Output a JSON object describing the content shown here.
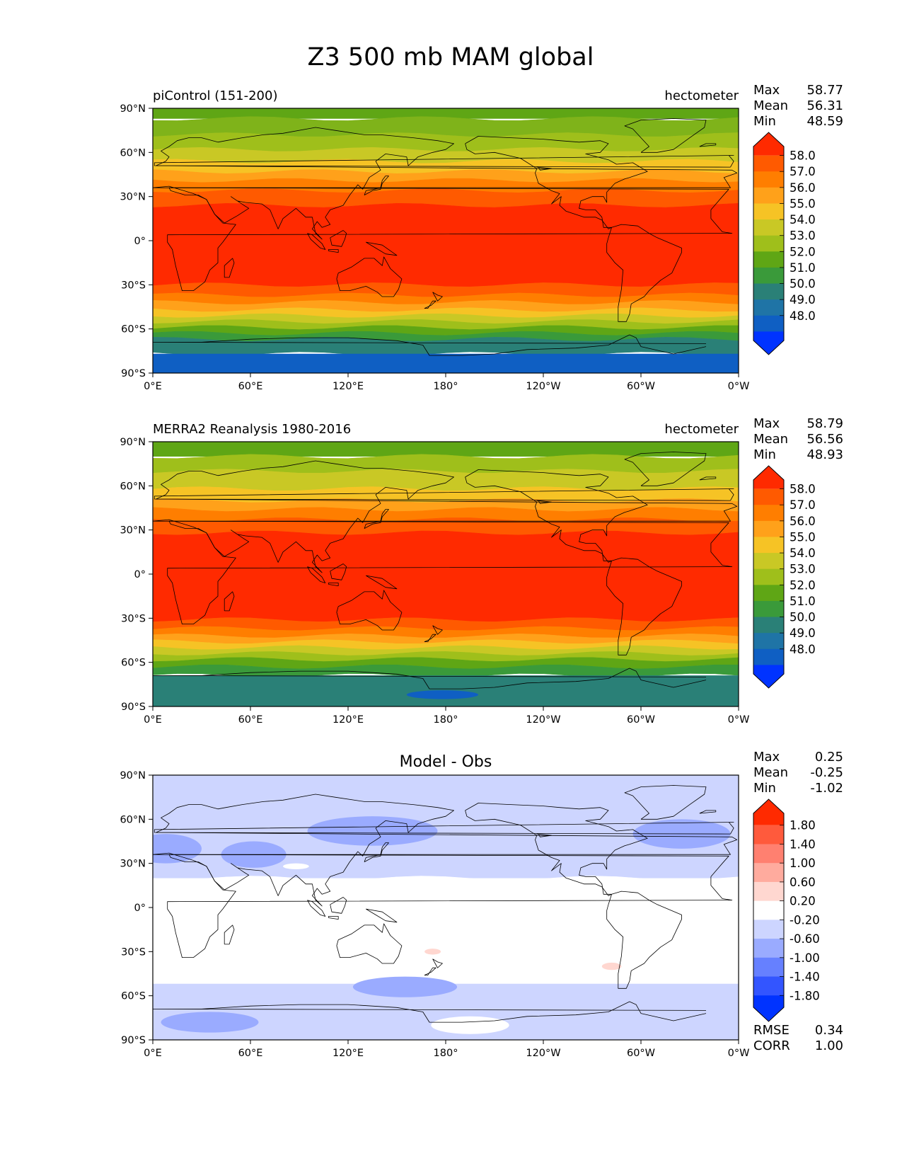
{
  "title": "Z3 500 mb MAM global",
  "axes": {
    "lat_ticks": [
      "90°N",
      "60°N",
      "30°N",
      "0°",
      "30°S",
      "60°S",
      "90°S"
    ],
    "lon_ticks": [
      "0°E",
      "60°E",
      "120°E",
      "180°",
      "120°W",
      "60°W",
      "0°W"
    ]
  },
  "panels": [
    {
      "id": "model",
      "left_title": "piControl (151-200)",
      "center_title": "",
      "units": "hectometer",
      "stats": [
        {
          "label": "Max",
          "value": "58.77"
        },
        {
          "label": "Mean",
          "value": "56.31"
        },
        {
          "label": "Min",
          "value": "48.59"
        }
      ],
      "bottom_stats": [],
      "colorbar": {
        "labels": [
          "58.0",
          "57.0",
          "56.0",
          "55.0",
          "54.0",
          "53.0",
          "52.0",
          "51.0",
          "50.0",
          "49.0",
          "48.0"
        ],
        "colors": [
          "#ff2a00",
          "#ff5a00",
          "#ff7e00",
          "#ffa11a",
          "#f6c325",
          "#c9c825",
          "#9fbf1b",
          "#5fa615",
          "#3a9a3a",
          "#2a8077",
          "#1f74a6",
          "#0f5fc3",
          "#0033ff"
        ],
        "extend_top_color": "#ff2a00",
        "extend_bottom_color": "#0033ff"
      },
      "field_bands": [
        {
          "lat_from": 90,
          "lat_to": 83,
          "color": "#5fa615"
        },
        {
          "lat_from": 83,
          "lat_to": 72,
          "color": "#7fb31a"
        },
        {
          "lat_from": 72,
          "lat_to": 62,
          "color": "#9fbf1b"
        },
        {
          "lat_from": 62,
          "lat_to": 54,
          "color": "#c9c825"
        },
        {
          "lat_from": 54,
          "lat_to": 47,
          "color": "#f6c325"
        },
        {
          "lat_from": 47,
          "lat_to": 41,
          "color": "#ffa11a"
        },
        {
          "lat_from": 41,
          "lat_to": 34,
          "color": "#ff7e00"
        },
        {
          "lat_from": 34,
          "lat_to": 24,
          "color": "#ff5a00"
        },
        {
          "lat_from": 24,
          "lat_to": -30,
          "color": "#ff2a00"
        },
        {
          "lat_from": -30,
          "lat_to": -37,
          "color": "#ff5a00"
        },
        {
          "lat_from": -37,
          "lat_to": -42,
          "color": "#ff7e00"
        },
        {
          "lat_from": -42,
          "lat_to": -47,
          "color": "#ffa11a"
        },
        {
          "lat_from": -47,
          "lat_to": -51,
          "color": "#f6c325"
        },
        {
          "lat_from": -51,
          "lat_to": -55,
          "color": "#c9c825"
        },
        {
          "lat_from": -55,
          "lat_to": -59,
          "color": "#9fbf1b"
        },
        {
          "lat_from": -59,
          "lat_to": -63,
          "color": "#5fa615"
        },
        {
          "lat_from": -63,
          "lat_to": -67,
          "color": "#3a9a3a"
        },
        {
          "lat_from": -67,
          "lat_to": -77,
          "color": "#2a8077"
        },
        {
          "lat_from": -77,
          "lat_to": -90,
          "color": "#0f5fc3"
        }
      ],
      "field_blobs": []
    },
    {
      "id": "obs",
      "left_title": "MERRA2 Reanalysis 1980-2016",
      "center_title": "",
      "units": "hectometer",
      "stats": [
        {
          "label": "Max",
          "value": "58.79"
        },
        {
          "label": "Mean",
          "value": "56.56"
        },
        {
          "label": "Min",
          "value": "48.93"
        }
      ],
      "bottom_stats": [],
      "colorbar": {
        "labels": [
          "58.0",
          "57.0",
          "56.0",
          "55.0",
          "54.0",
          "53.0",
          "52.0",
          "51.0",
          "50.0",
          "49.0",
          "48.0"
        ],
        "colors": [
          "#ff2a00",
          "#ff5a00",
          "#ff7e00",
          "#ffa11a",
          "#f6c325",
          "#c9c825",
          "#9fbf1b",
          "#5fa615",
          "#3a9a3a",
          "#2a8077",
          "#1f74a6",
          "#0f5fc3",
          "#0033ff"
        ],
        "extend_top_color": "#ff2a00",
        "extend_bottom_color": "#0033ff"
      },
      "field_bands": [
        {
          "lat_from": 90,
          "lat_to": 80,
          "color": "#5fa615"
        },
        {
          "lat_from": 80,
          "lat_to": 70,
          "color": "#9fbf1b"
        },
        {
          "lat_from": 70,
          "lat_to": 58,
          "color": "#c9c825"
        },
        {
          "lat_from": 58,
          "lat_to": 50,
          "color": "#f6c325"
        },
        {
          "lat_from": 50,
          "lat_to": 44,
          "color": "#ffa11a"
        },
        {
          "lat_from": 44,
          "lat_to": 37,
          "color": "#ff7e00"
        },
        {
          "lat_from": 37,
          "lat_to": 28,
          "color": "#ff5a00"
        },
        {
          "lat_from": 28,
          "lat_to": -31,
          "color": "#ff2a00"
        },
        {
          "lat_from": -31,
          "lat_to": -37,
          "color": "#ff5a00"
        },
        {
          "lat_from": -37,
          "lat_to": -42,
          "color": "#ff7e00"
        },
        {
          "lat_from": -42,
          "lat_to": -46,
          "color": "#ffa11a"
        },
        {
          "lat_from": -46,
          "lat_to": -50,
          "color": "#f6c325"
        },
        {
          "lat_from": -50,
          "lat_to": -54,
          "color": "#c9c825"
        },
        {
          "lat_from": -54,
          "lat_to": -58,
          "color": "#9fbf1b"
        },
        {
          "lat_from": -58,
          "lat_to": -63,
          "color": "#5fa615"
        },
        {
          "lat_from": -63,
          "lat_to": -69,
          "color": "#3a9a3a"
        },
        {
          "lat_from": -69,
          "lat_to": -90,
          "color": "#2a8077"
        }
      ],
      "field_blobs": [
        {
          "lon": 178,
          "lat": -82,
          "rlon": 22,
          "rlat": 3,
          "color": "#0f5fc3"
        }
      ]
    },
    {
      "id": "diff",
      "left_title": "",
      "center_title": "Model - Obs",
      "units": "",
      "stats": [
        {
          "label": "Max",
          "value": "0.25"
        },
        {
          "label": "Mean",
          "value": "-0.25"
        },
        {
          "label": "Min",
          "value": "-1.02"
        }
      ],
      "bottom_stats": [
        {
          "label": "RMSE",
          "value": "0.34"
        },
        {
          "label": "CORR",
          "value": "1.00"
        }
      ],
      "colorbar": {
        "labels": [
          "1.80",
          "1.40",
          "1.00",
          "0.60",
          "0.20",
          "-0.20",
          "-0.60",
          "-1.00",
          "-1.40",
          "-1.80"
        ],
        "colors": [
          "#ff2a00",
          "#ff5a3c",
          "#ff8070",
          "#ffab9e",
          "#ffd7d0",
          "#ffffff",
          "#cdd5ff",
          "#9aabff",
          "#6680ff",
          "#3355ff",
          "#0033ff"
        ],
        "extend_top_color": "#ff2a00",
        "extend_bottom_color": "#0033ff"
      },
      "field_bands": [
        {
          "lat_from": 90,
          "lat_to": 20,
          "color": "#cdd5ff"
        },
        {
          "lat_from": 20,
          "lat_to": -52,
          "color": "#ffffff"
        },
        {
          "lat_from": -52,
          "lat_to": -90,
          "color": "#cdd5ff"
        }
      ],
      "field_blobs": [
        {
          "lon": 135,
          "lat": 52,
          "rlon": 40,
          "rlat": 10,
          "color": "#9aabff"
        },
        {
          "lon": 325,
          "lat": 50,
          "rlon": 30,
          "rlat": 10,
          "color": "#9aabff"
        },
        {
          "lon": 8,
          "lat": 40,
          "rlon": 22,
          "rlat": 10,
          "color": "#9aabff"
        },
        {
          "lon": 62,
          "lat": 36,
          "rlon": 20,
          "rlat": 9,
          "color": "#9aabff"
        },
        {
          "lon": 155,
          "lat": -54,
          "rlon": 32,
          "rlat": 7,
          "color": "#9aabff"
        },
        {
          "lon": 35,
          "lat": -78,
          "rlon": 30,
          "rlat": 7,
          "color": "#9aabff"
        },
        {
          "lon": 195,
          "lat": -80,
          "rlon": 24,
          "rlat": 6,
          "color": "#ffffff"
        },
        {
          "lon": 172,
          "lat": -30,
          "rlon": 5,
          "rlat": 2,
          "color": "#ffd7d0"
        },
        {
          "lon": 282,
          "lat": -40,
          "rlon": 6,
          "rlat": 2.5,
          "color": "#ffd7d0"
        },
        {
          "lon": 88,
          "lat": 28,
          "rlon": 8,
          "rlat": 2,
          "color": "#ffffff"
        }
      ]
    }
  ]
}
